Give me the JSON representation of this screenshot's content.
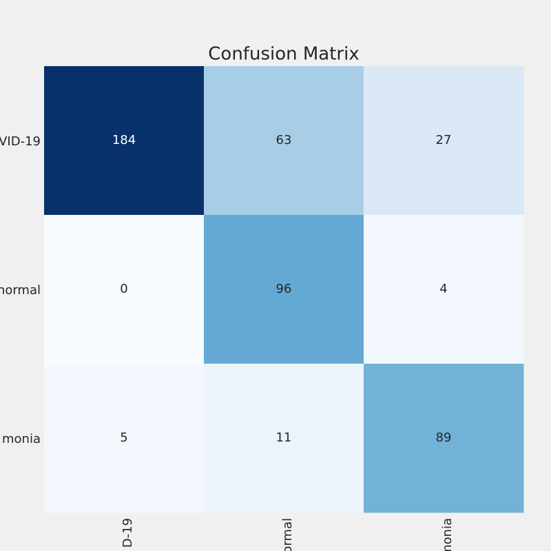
{
  "chart_data": {
    "type": "heatmap",
    "title": "Confusion Matrix",
    "x_categories": [
      "D-19",
      "ormal",
      "monia"
    ],
    "y_categories": [
      "VID-19",
      "normal",
      "monia"
    ],
    "values": [
      [
        184,
        63,
        27
      ],
      [
        0,
        96,
        4
      ],
      [
        5,
        11,
        89
      ]
    ],
    "colormap": "Blues"
  }
}
